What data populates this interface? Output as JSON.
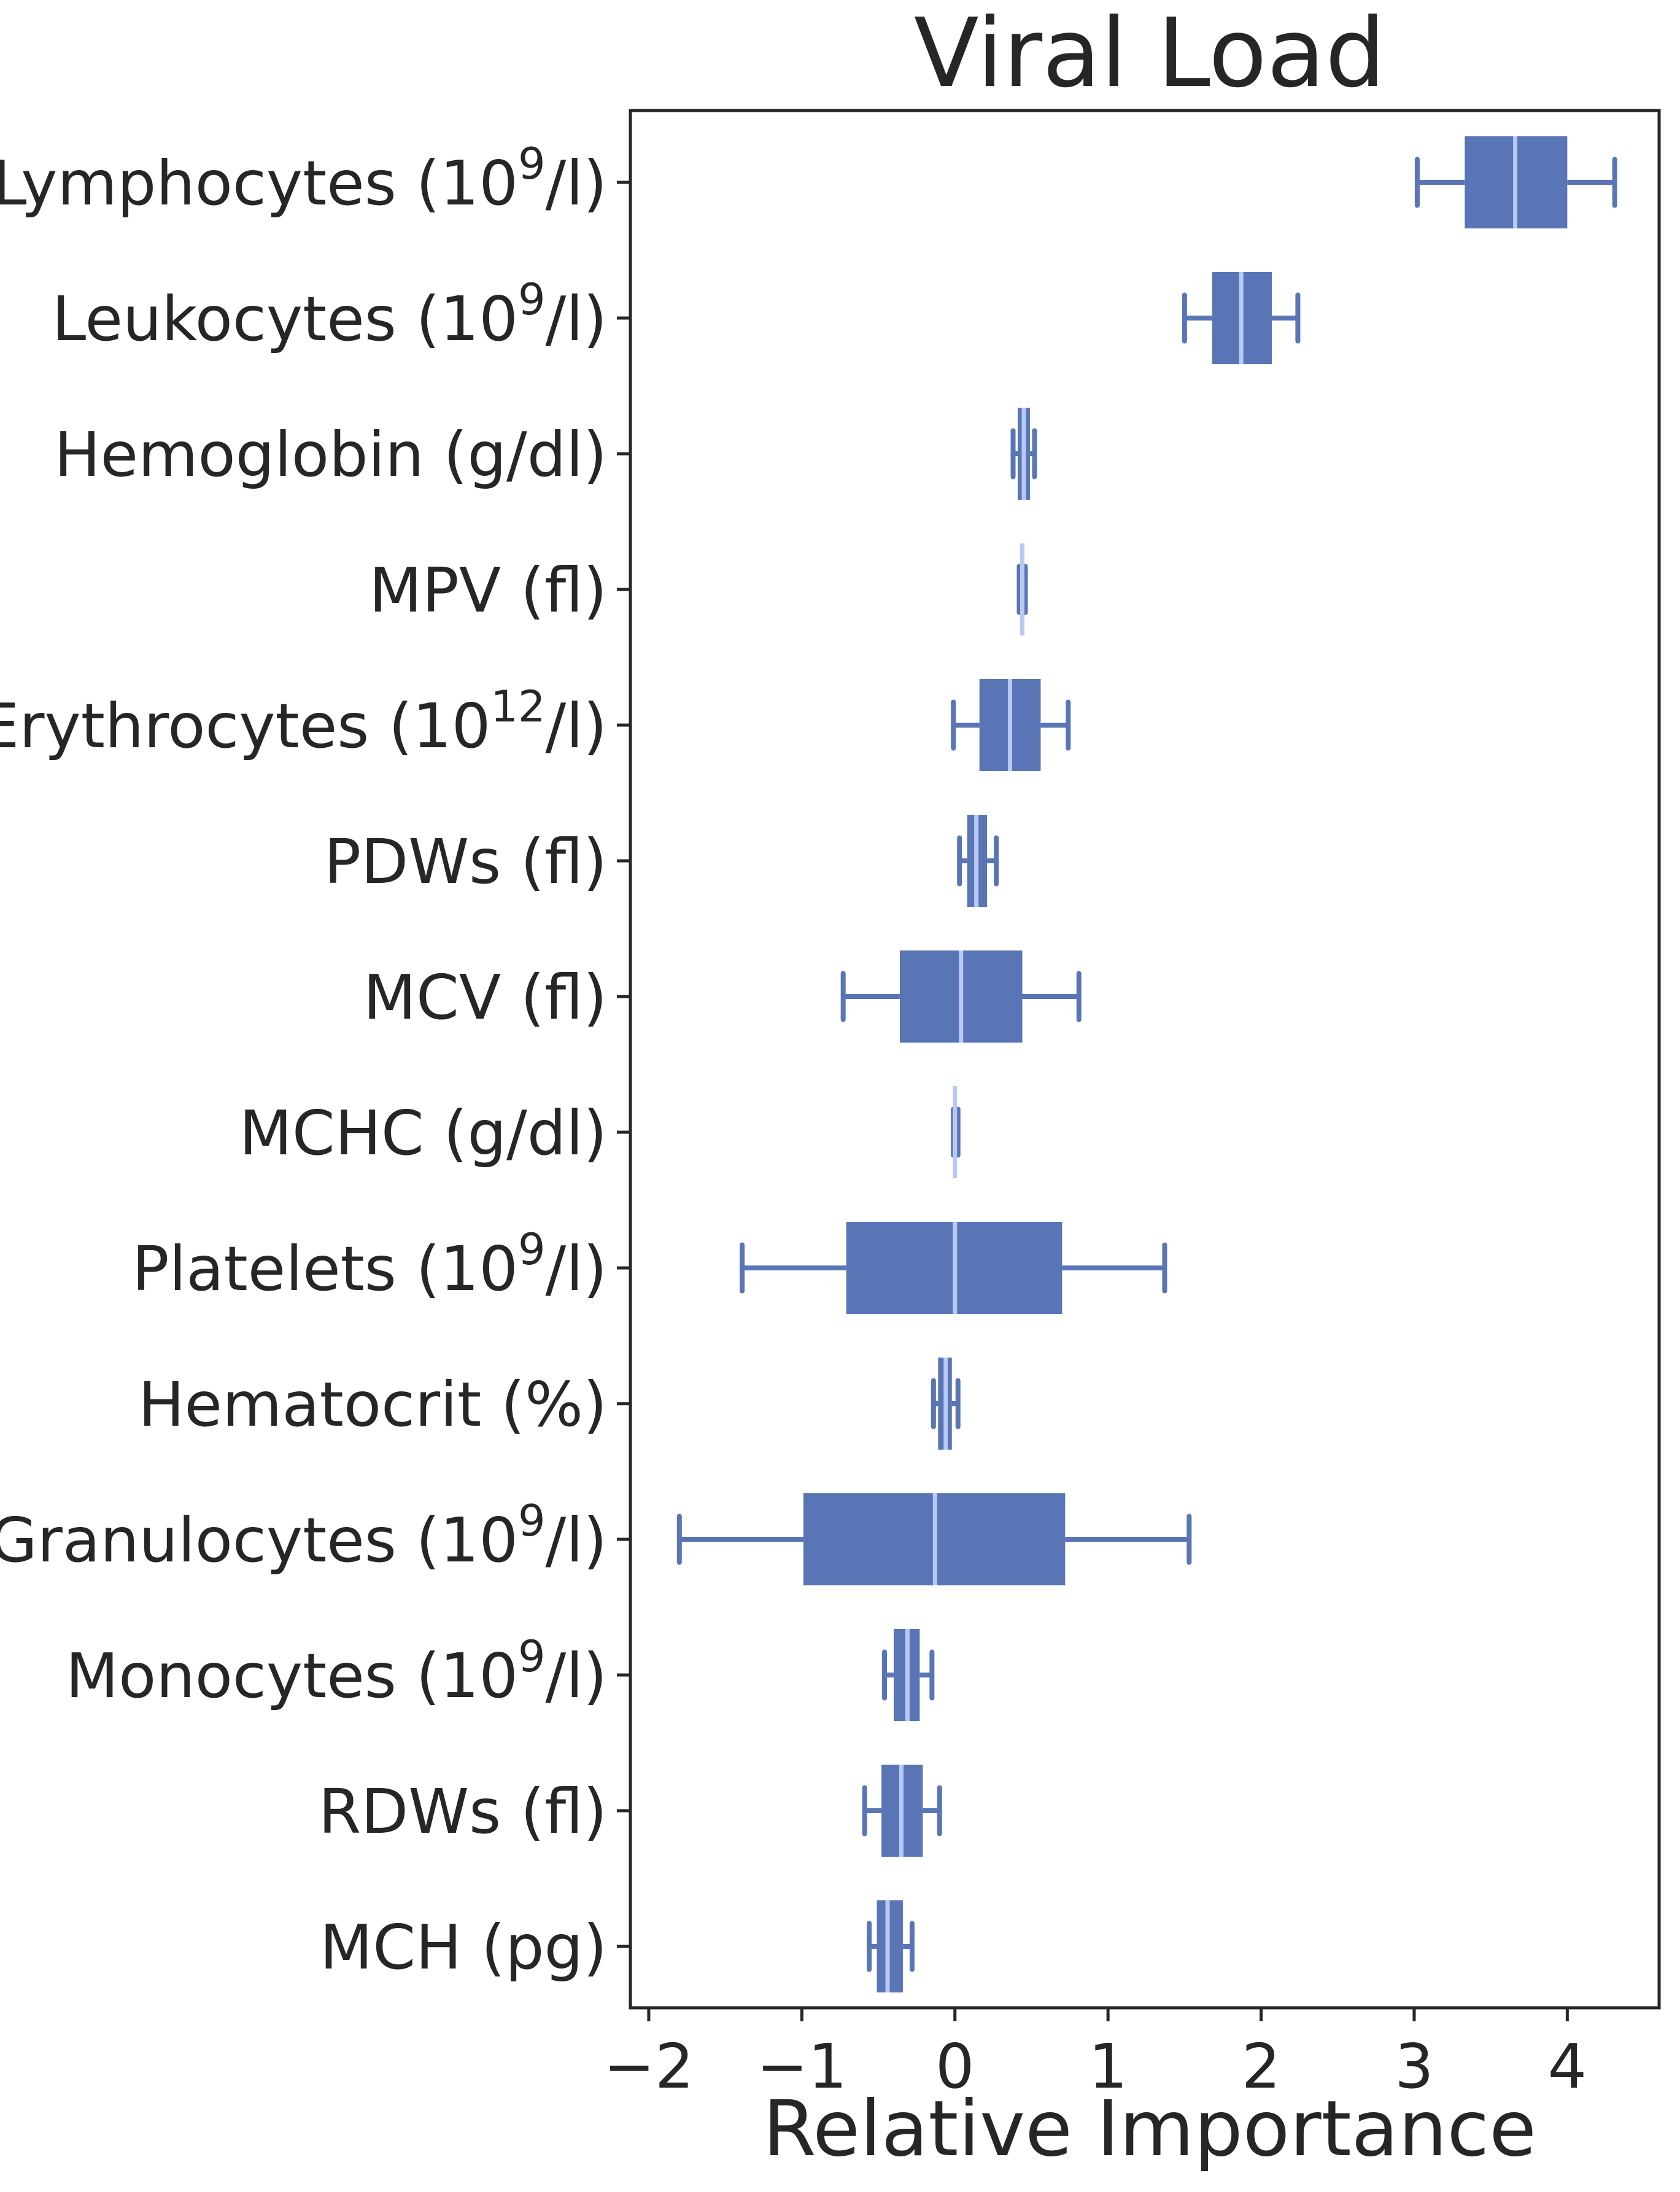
{
  "chart_data": {
    "type": "box",
    "orientation": "horizontal",
    "title": "Viral Load",
    "xlabel": "Relative Importance",
    "ylabel": "",
    "xlim": [
      -2.12,
      4.6
    ],
    "xticks": [
      -2,
      -1,
      0,
      1,
      2,
      3,
      4
    ],
    "xtick_labels": [
      "−2",
      "−1",
      "0",
      "1",
      "2",
      "3",
      "4"
    ],
    "grid": false,
    "colors": {
      "box": "#5975b5",
      "median": "#b9c9f5",
      "axis": "#262626"
    },
    "categories": [
      {
        "base": "Lymphocytes (10",
        "sup": "9",
        "tail": "/l)"
      },
      {
        "base": "Leukocytes (10",
        "sup": "9",
        "tail": "/l)"
      },
      {
        "base": "Hemoglobin (g/dl)",
        "sup": "",
        "tail": ""
      },
      {
        "base": "MPV (fl)",
        "sup": "",
        "tail": ""
      },
      {
        "base": "Erythrocytes (10",
        "sup": "12",
        "tail": "/l)"
      },
      {
        "base": "PDWs (fl)",
        "sup": "",
        "tail": ""
      },
      {
        "base": "MCV (fl)",
        "sup": "",
        "tail": ""
      },
      {
        "base": "MCHC (g/dl)",
        "sup": "",
        "tail": ""
      },
      {
        "base": "Platelets (10",
        "sup": "9",
        "tail": "/l)"
      },
      {
        "base": "Hematocrit (%)",
        "sup": "",
        "tail": ""
      },
      {
        "base": "Granulocytes (10",
        "sup": "9",
        "tail": "/l)"
      },
      {
        "base": "Monocytes (10",
        "sup": "9",
        "tail": "/l)"
      },
      {
        "base": "RDWs (fl)",
        "sup": "",
        "tail": ""
      },
      {
        "base": "MCH (pg)",
        "sup": "",
        "tail": ""
      }
    ],
    "boxes": [
      {
        "whisker_low": 3.02,
        "q1": 3.33,
        "median": 3.66,
        "q3": 4.0,
        "whisker_high": 4.31
      },
      {
        "whisker_low": 1.5,
        "q1": 1.68,
        "median": 1.87,
        "q3": 2.07,
        "whisker_high": 2.24
      },
      {
        "whisker_low": 0.38,
        "q1": 0.41,
        "median": 0.45,
        "q3": 0.49,
        "whisker_high": 0.52
      },
      {
        "whisker_low": 0.42,
        "q1": 0.43,
        "median": 0.44,
        "q3": 0.45,
        "whisker_high": 0.46
      },
      {
        "whisker_low": -0.01,
        "q1": 0.16,
        "median": 0.36,
        "q3": 0.56,
        "whisker_high": 0.74
      },
      {
        "whisker_low": 0.03,
        "q1": 0.08,
        "median": 0.14,
        "q3": 0.21,
        "whisker_high": 0.27
      },
      {
        "whisker_low": -0.73,
        "q1": -0.36,
        "median": 0.04,
        "q3": 0.44,
        "whisker_high": 0.81
      },
      {
        "whisker_low": -0.01,
        "q1": -0.01,
        "median": 0.0,
        "q3": 0.01,
        "whisker_high": 0.02
      },
      {
        "whisker_low": -1.39,
        "q1": -0.71,
        "median": 0.0,
        "q3": 0.7,
        "whisker_high": 1.37
      },
      {
        "whisker_low": -0.14,
        "q1": -0.11,
        "median": -0.06,
        "q3": -0.02,
        "whisker_high": 0.02
      },
      {
        "whisker_low": -1.8,
        "q1": -0.99,
        "median": -0.13,
        "q3": 0.72,
        "whisker_high": 1.53
      },
      {
        "whisker_low": -0.46,
        "q1": -0.4,
        "median": -0.31,
        "q3": -0.23,
        "whisker_high": -0.15
      },
      {
        "whisker_low": -0.59,
        "q1": -0.48,
        "median": -0.35,
        "q3": -0.21,
        "whisker_high": -0.1
      },
      {
        "whisker_low": -0.56,
        "q1": -0.51,
        "median": -0.44,
        "q3": -0.34,
        "whisker_high": -0.28
      }
    ]
  }
}
